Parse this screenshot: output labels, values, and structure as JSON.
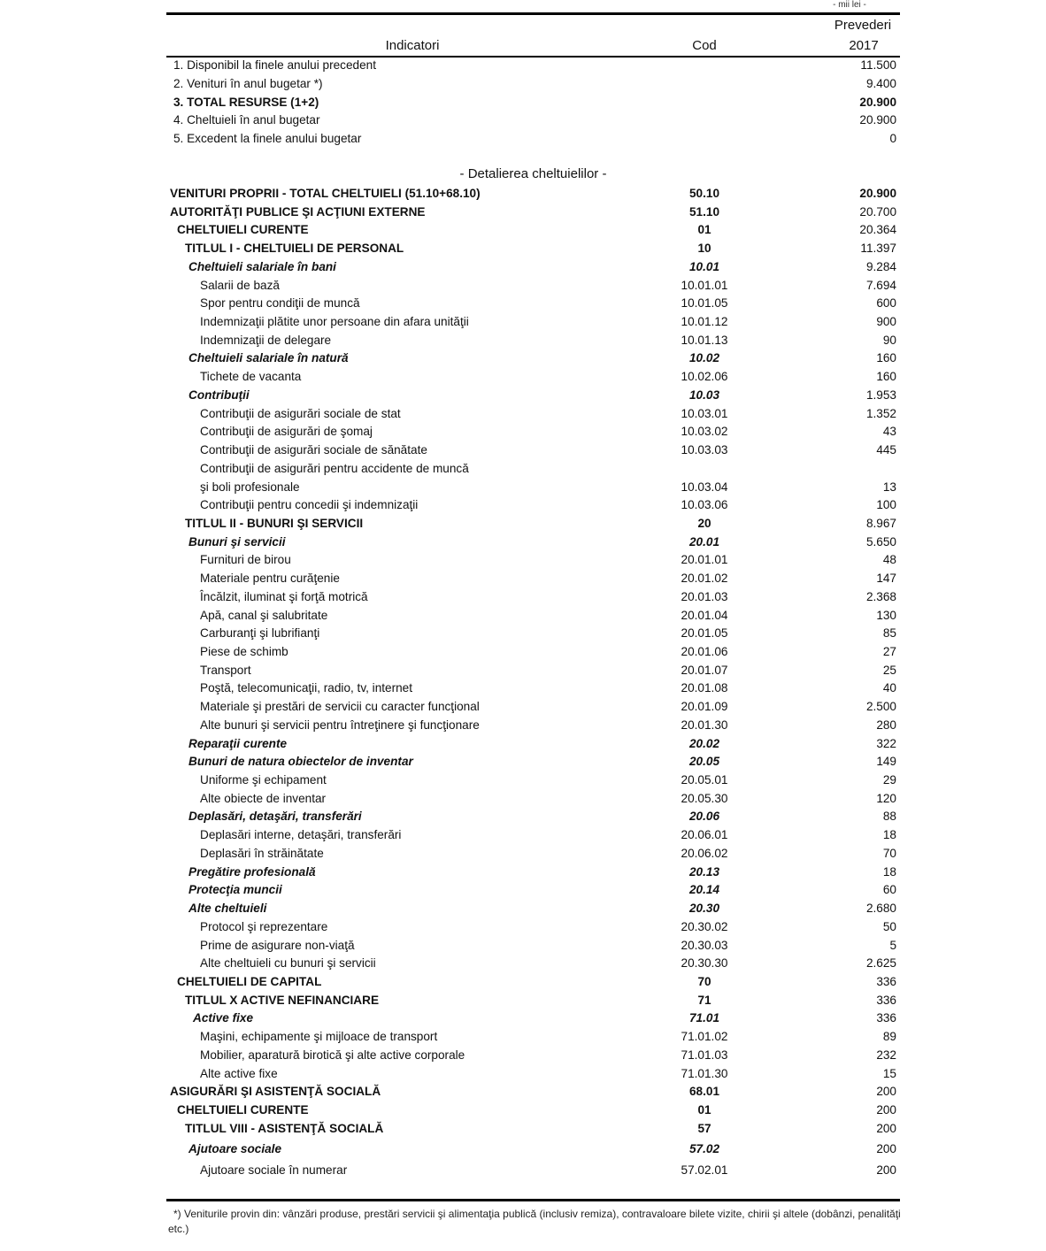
{
  "unit": "- mii lei -",
  "header": {
    "indicator": "Indicatori",
    "code": "Cod",
    "forecast_line1": "Prevederi",
    "forecast_line2": "2017"
  },
  "summary": [
    {
      "label": "1. Disponibil la finele anului precedent",
      "value": "11.500",
      "kind": "normal"
    },
    {
      "label": "2. Venituri în anul bugetar  *)",
      "value": "9.400",
      "kind": "normal"
    },
    {
      "label": "3. TOTAL RESURSE (1+2)",
      "value": "20.900",
      "kind": "bold"
    },
    {
      "label": "4. Cheltuieli în anul bugetar",
      "value": "20.900",
      "kind": "normal"
    },
    {
      "label": "5. Excedent la finele anului bugetar",
      "value": "0",
      "kind": "normal"
    }
  ],
  "detail_title": "- Detalierea cheltuielilor -",
  "rows": [
    {
      "label": "VENITURI PROPRII - TOTAL CHELTUIELI (51.10+68.10)",
      "code": "50.10",
      "value": "20.900",
      "kind": "bold",
      "level": 0,
      "valbold": true
    },
    {
      "label": "AUTORITĂŢI PUBLICE ŞI ACŢIUNI EXTERNE",
      "code": "51.10",
      "value": "20.700",
      "kind": "bold",
      "level": 0
    },
    {
      "label": "CHELTUIELI CURENTE",
      "code": "01",
      "value": "20.364",
      "kind": "bold",
      "level": 1
    },
    {
      "label": "TITLUL I - CHELTUIELI DE PERSONAL",
      "code": "10",
      "value": "11.397",
      "kind": "bold",
      "level": 2
    },
    {
      "label": "Cheltuieli salariale în bani",
      "code": "10.01",
      "value": "9.284",
      "kind": "bolditalic",
      "level": 3
    },
    {
      "label": "Salarii de bază",
      "code": "10.01.01",
      "value": "7.694",
      "kind": "normal",
      "level": 4
    },
    {
      "label": "Spor pentru condiţii de muncă",
      "code": "10.01.05",
      "value": "600",
      "kind": "normal",
      "level": 4
    },
    {
      "label": "Indemnizaţii plătite unor persoane din afara unităţii",
      "code": "10.01.12",
      "value": "900",
      "kind": "normal",
      "level": 4
    },
    {
      "label": "Indemnizaţii de delegare",
      "code": "10.01.13",
      "value": "90",
      "kind": "normal",
      "level": 4
    },
    {
      "label": "Cheltuieli salariale în natură",
      "code": "10.02",
      "value": "160",
      "kind": "bolditalic",
      "level": 3
    },
    {
      "label": "Tichete de vacanta",
      "code": "10.02.06",
      "value": "160",
      "kind": "normal",
      "level": 4
    },
    {
      "label": "Contribuţii",
      "code": "10.03",
      "value": "1.953",
      "kind": "bolditalic",
      "level": 3
    },
    {
      "label": "Contribuţii de asigurări sociale de stat",
      "code": "10.03.01",
      "value": "1.352",
      "kind": "normal",
      "level": 4
    },
    {
      "label": "Contribuţii de asigurări de şomaj",
      "code": "10.03.02",
      "value": "43",
      "kind": "normal",
      "level": 4
    },
    {
      "label": "Contribuţii de asigurări sociale de sănătate",
      "code": "10.03.03",
      "value": "445",
      "kind": "normal",
      "level": 4
    },
    {
      "label": "Contribuţii de asigurări pentru accidente de muncă",
      "code": "",
      "value": "",
      "kind": "normal",
      "level": 4
    },
    {
      "label": "şi boli profesionale",
      "code": "10.03.04",
      "value": "13",
      "kind": "normal",
      "level": 4
    },
    {
      "label": "Contribuţii pentru concedii şi indemnizaţii",
      "code": "10.03.06",
      "value": "100",
      "kind": "normal",
      "level": 4
    },
    {
      "label": "TITLUL II - BUNURI ŞI SERVICII",
      "code": "20",
      "value": "8.967",
      "kind": "bold",
      "level": 2
    },
    {
      "label": "Bunuri şi servicii",
      "code": "20.01",
      "value": "5.650",
      "kind": "bolditalic",
      "level": 3
    },
    {
      "label": "Furnituri de birou",
      "code": "20.01.01",
      "value": "48",
      "kind": "normal",
      "level": 4
    },
    {
      "label": "Materiale pentru curăţenie",
      "code": "20.01.02",
      "value": "147",
      "kind": "normal",
      "level": 4
    },
    {
      "label": "Încălzit, iluminat şi forţă motrică",
      "code": "20.01.03",
      "value": "2.368",
      "kind": "normal",
      "level": 4
    },
    {
      "label": "Apă, canal şi salubritate",
      "code": "20.01.04",
      "value": "130",
      "kind": "normal",
      "level": 4
    },
    {
      "label": "Carburanţi şi lubrifianţi",
      "code": "20.01.05",
      "value": "85",
      "kind": "normal",
      "level": 4
    },
    {
      "label": "Piese de schimb",
      "code": "20.01.06",
      "value": "27",
      "kind": "normal",
      "level": 4
    },
    {
      "label": "Transport",
      "code": "20.01.07",
      "value": "25",
      "kind": "normal",
      "level": 4
    },
    {
      "label": "Poştă, telecomunicaţii, radio, tv, internet",
      "code": "20.01.08",
      "value": "40",
      "kind": "normal",
      "level": 4
    },
    {
      "label": "Materiale şi prestări de servicii cu caracter funcţional",
      "code": "20.01.09",
      "value": "2.500",
      "kind": "normal",
      "level": 4
    },
    {
      "label": "Alte bunuri şi servicii pentru întreţinere şi funcţionare",
      "code": "20.01.30",
      "value": "280",
      "kind": "normal",
      "level": 4
    },
    {
      "label": "Reparaţii curente",
      "code": "20.02",
      "value": "322",
      "kind": "bolditalic",
      "level": 3
    },
    {
      "label": "Bunuri de natura obiectelor de inventar",
      "code": "20.05",
      "value": "149",
      "kind": "bolditalic",
      "level": 3
    },
    {
      "label": "Uniforme şi echipament",
      "code": "20.05.01",
      "value": "29",
      "kind": "normal",
      "level": 4
    },
    {
      "label": "Alte obiecte de inventar",
      "code": "20.05.30",
      "value": "120",
      "kind": "normal",
      "level": 4
    },
    {
      "label": "Deplasări, detaşări, transferări",
      "code": "20.06",
      "value": "88",
      "kind": "bolditalic",
      "level": 3
    },
    {
      "label": "Deplasări interne, detaşări, transferări",
      "code": "20.06.01",
      "value": "18",
      "kind": "normal",
      "level": 4
    },
    {
      "label": "Deplasări în străinătate",
      "code": "20.06.02",
      "value": "70",
      "kind": "normal",
      "level": 4
    },
    {
      "label": "Pregătire profesională",
      "code": "20.13",
      "value": "18",
      "kind": "bolditalic",
      "level": 3
    },
    {
      "label": "Protecţia muncii",
      "code": "20.14",
      "value": "60",
      "kind": "bolditalic",
      "level": 3
    },
    {
      "label": "Alte cheltuieli",
      "code": "20.30",
      "value": "2.680",
      "kind": "bolditalic",
      "level": 3
    },
    {
      "label": "Protocol şi reprezentare",
      "code": "20.30.02",
      "value": "50",
      "kind": "normal",
      "level": 4
    },
    {
      "label": "Prime de asigurare non-viaţă",
      "code": "20.30.03",
      "value": "5",
      "kind": "normal",
      "level": 4
    },
    {
      "label": "Alte cheltuieli cu bunuri şi servicii",
      "code": "20.30.30",
      "value": "2.625",
      "kind": "normal",
      "level": 4
    },
    {
      "label": "CHELTUIELI DE CAPITAL",
      "code": "70",
      "value": "336",
      "kind": "bold",
      "level": 1
    },
    {
      "label": "TITLUL X ACTIVE NEFINANCIARE",
      "code": "71",
      "value": "336",
      "kind": "bold",
      "level": 2
    },
    {
      "label": "Active fixe",
      "code": "71.01",
      "value": "336",
      "kind": "bolditalic",
      "level": 3.5
    },
    {
      "label": "Maşini, echipamente şi mijloace de transport",
      "code": "71.01.02",
      "value": "89",
      "kind": "normal",
      "level": 4
    },
    {
      "label": "Mobilier, aparatură birotică şi alte active corporale",
      "code": "71.01.03",
      "value": "232",
      "kind": "normal",
      "level": 4
    },
    {
      "label": "Alte active fixe",
      "code": "71.01.30",
      "value": "15",
      "kind": "normal",
      "level": 4
    },
    {
      "label": "ASIGURĂRI ŞI ASISTENŢĂ SOCIALĂ",
      "code": "68.01",
      "value": "200",
      "kind": "bold",
      "level": 0
    },
    {
      "label": "CHELTUIELI CURENTE",
      "code": "01",
      "value": "200",
      "kind": "bold",
      "level": 1
    },
    {
      "label": "TITLUL VIII - ASISTENŢĂ SOCIALĂ",
      "code": "57",
      "value": "200",
      "kind": "bold",
      "level": 2
    },
    {
      "label": "Ajutoare sociale",
      "code": "57.02",
      "value": "200",
      "kind": "bolditalic",
      "level": 3
    },
    {
      "label": "Ajutoare sociale în numerar",
      "code": "57.02.01",
      "value": "200",
      "kind": "normal",
      "level": 4
    }
  ],
  "footnote": "*) Veniturile provin din: vânzări produse, prestări servicii şi alimentaţia publică (inclusiv remiza), contravaloare bilete vizite, chirii şi altele (dobânzi, penalităţi etc.)"
}
